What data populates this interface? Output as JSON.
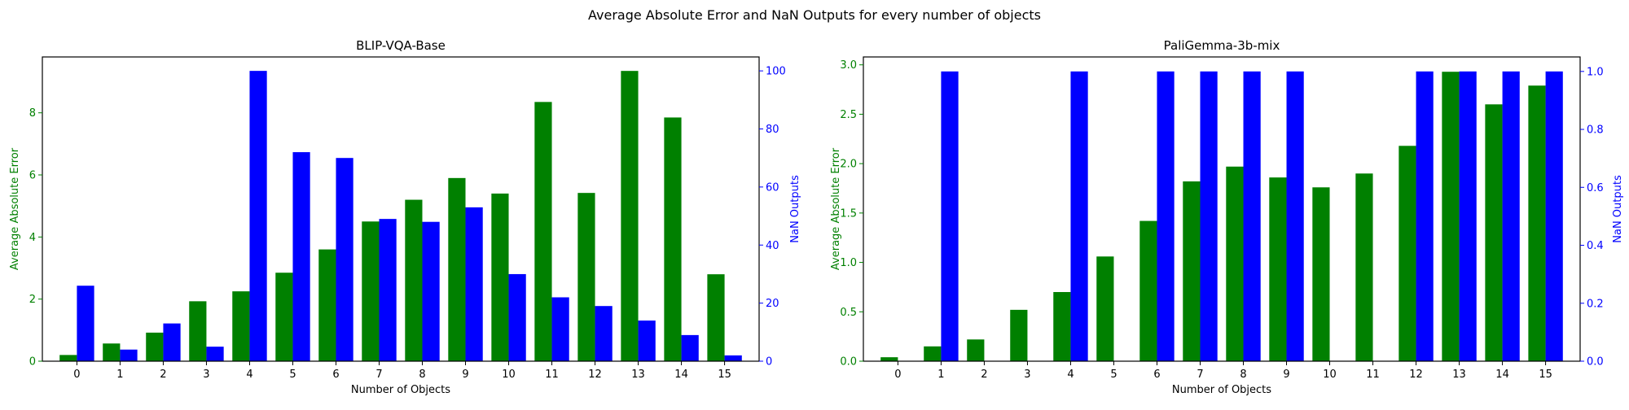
{
  "suptitle": "Average Absolute Error and NaN Outputs for every number of objects",
  "colors": {
    "left_axis": "#008000",
    "right_axis": "#0000ff",
    "frame": "#000000"
  },
  "chart_data": [
    {
      "type": "bar",
      "title": "BLIP-VQA-Base",
      "xlabel": "Number of Objects",
      "ylabel_left": "Average Absolute Error",
      "ylabel_right": "NaN Outputs",
      "categories": [
        "0",
        "1",
        "2",
        "3",
        "4",
        "5",
        "6",
        "7",
        "8",
        "9",
        "10",
        "11",
        "12",
        "13",
        "14",
        "15"
      ],
      "ylim_left": [
        0,
        9.8
      ],
      "ylim_right": [
        0,
        104.8
      ],
      "yticks_left": [
        0,
        2,
        4,
        6,
        8
      ],
      "yticks_right": [
        0,
        20,
        40,
        60,
        80,
        100
      ],
      "series": [
        {
          "name": "Average Absolute Error",
          "axis": "left",
          "color": "#008000",
          "values": [
            0.2,
            0.57,
            0.92,
            1.93,
            2.25,
            2.85,
            3.6,
            4.5,
            5.2,
            5.9,
            5.4,
            8.35,
            5.42,
            9.35,
            7.85,
            2.8
          ]
        },
        {
          "name": "NaN Outputs",
          "axis": "right",
          "color": "#0000ff",
          "values": [
            26,
            4,
            13,
            5,
            100,
            72,
            70,
            49,
            48,
            53,
            30,
            22,
            19,
            14,
            9,
            2
          ]
        }
      ]
    },
    {
      "type": "bar",
      "title": "PaliGemma-3b-mix",
      "xlabel": "Number of Objects",
      "ylabel_left": "Average Absolute Error",
      "ylabel_right": "NaN Outputs",
      "categories": [
        "0",
        "1",
        "2",
        "3",
        "4",
        "5",
        "6",
        "7",
        "8",
        "9",
        "10",
        "11",
        "12",
        "13",
        "14",
        "15"
      ],
      "ylim_left": [
        0,
        3.08
      ],
      "ylim_right": [
        0,
        1.05
      ],
      "yticks_left": [
        0.0,
        0.5,
        1.0,
        1.5,
        2.0,
        2.5,
        3.0
      ],
      "yticks_right": [
        0.0,
        0.2,
        0.4,
        0.6,
        0.8,
        1.0
      ],
      "series": [
        {
          "name": "Average Absolute Error",
          "axis": "left",
          "color": "#008000",
          "values": [
            0.04,
            0.15,
            0.22,
            0.52,
            0.7,
            1.06,
            1.42,
            1.82,
            1.97,
            1.86,
            1.76,
            1.9,
            2.18,
            2.93,
            2.6,
            2.79
          ]
        },
        {
          "name": "NaN Outputs",
          "axis": "right",
          "color": "#0000ff",
          "values": [
            0,
            1,
            0,
            0,
            1,
            0,
            1,
            1,
            1,
            1,
            0,
            0,
            1,
            1,
            1,
            1
          ]
        }
      ]
    }
  ]
}
